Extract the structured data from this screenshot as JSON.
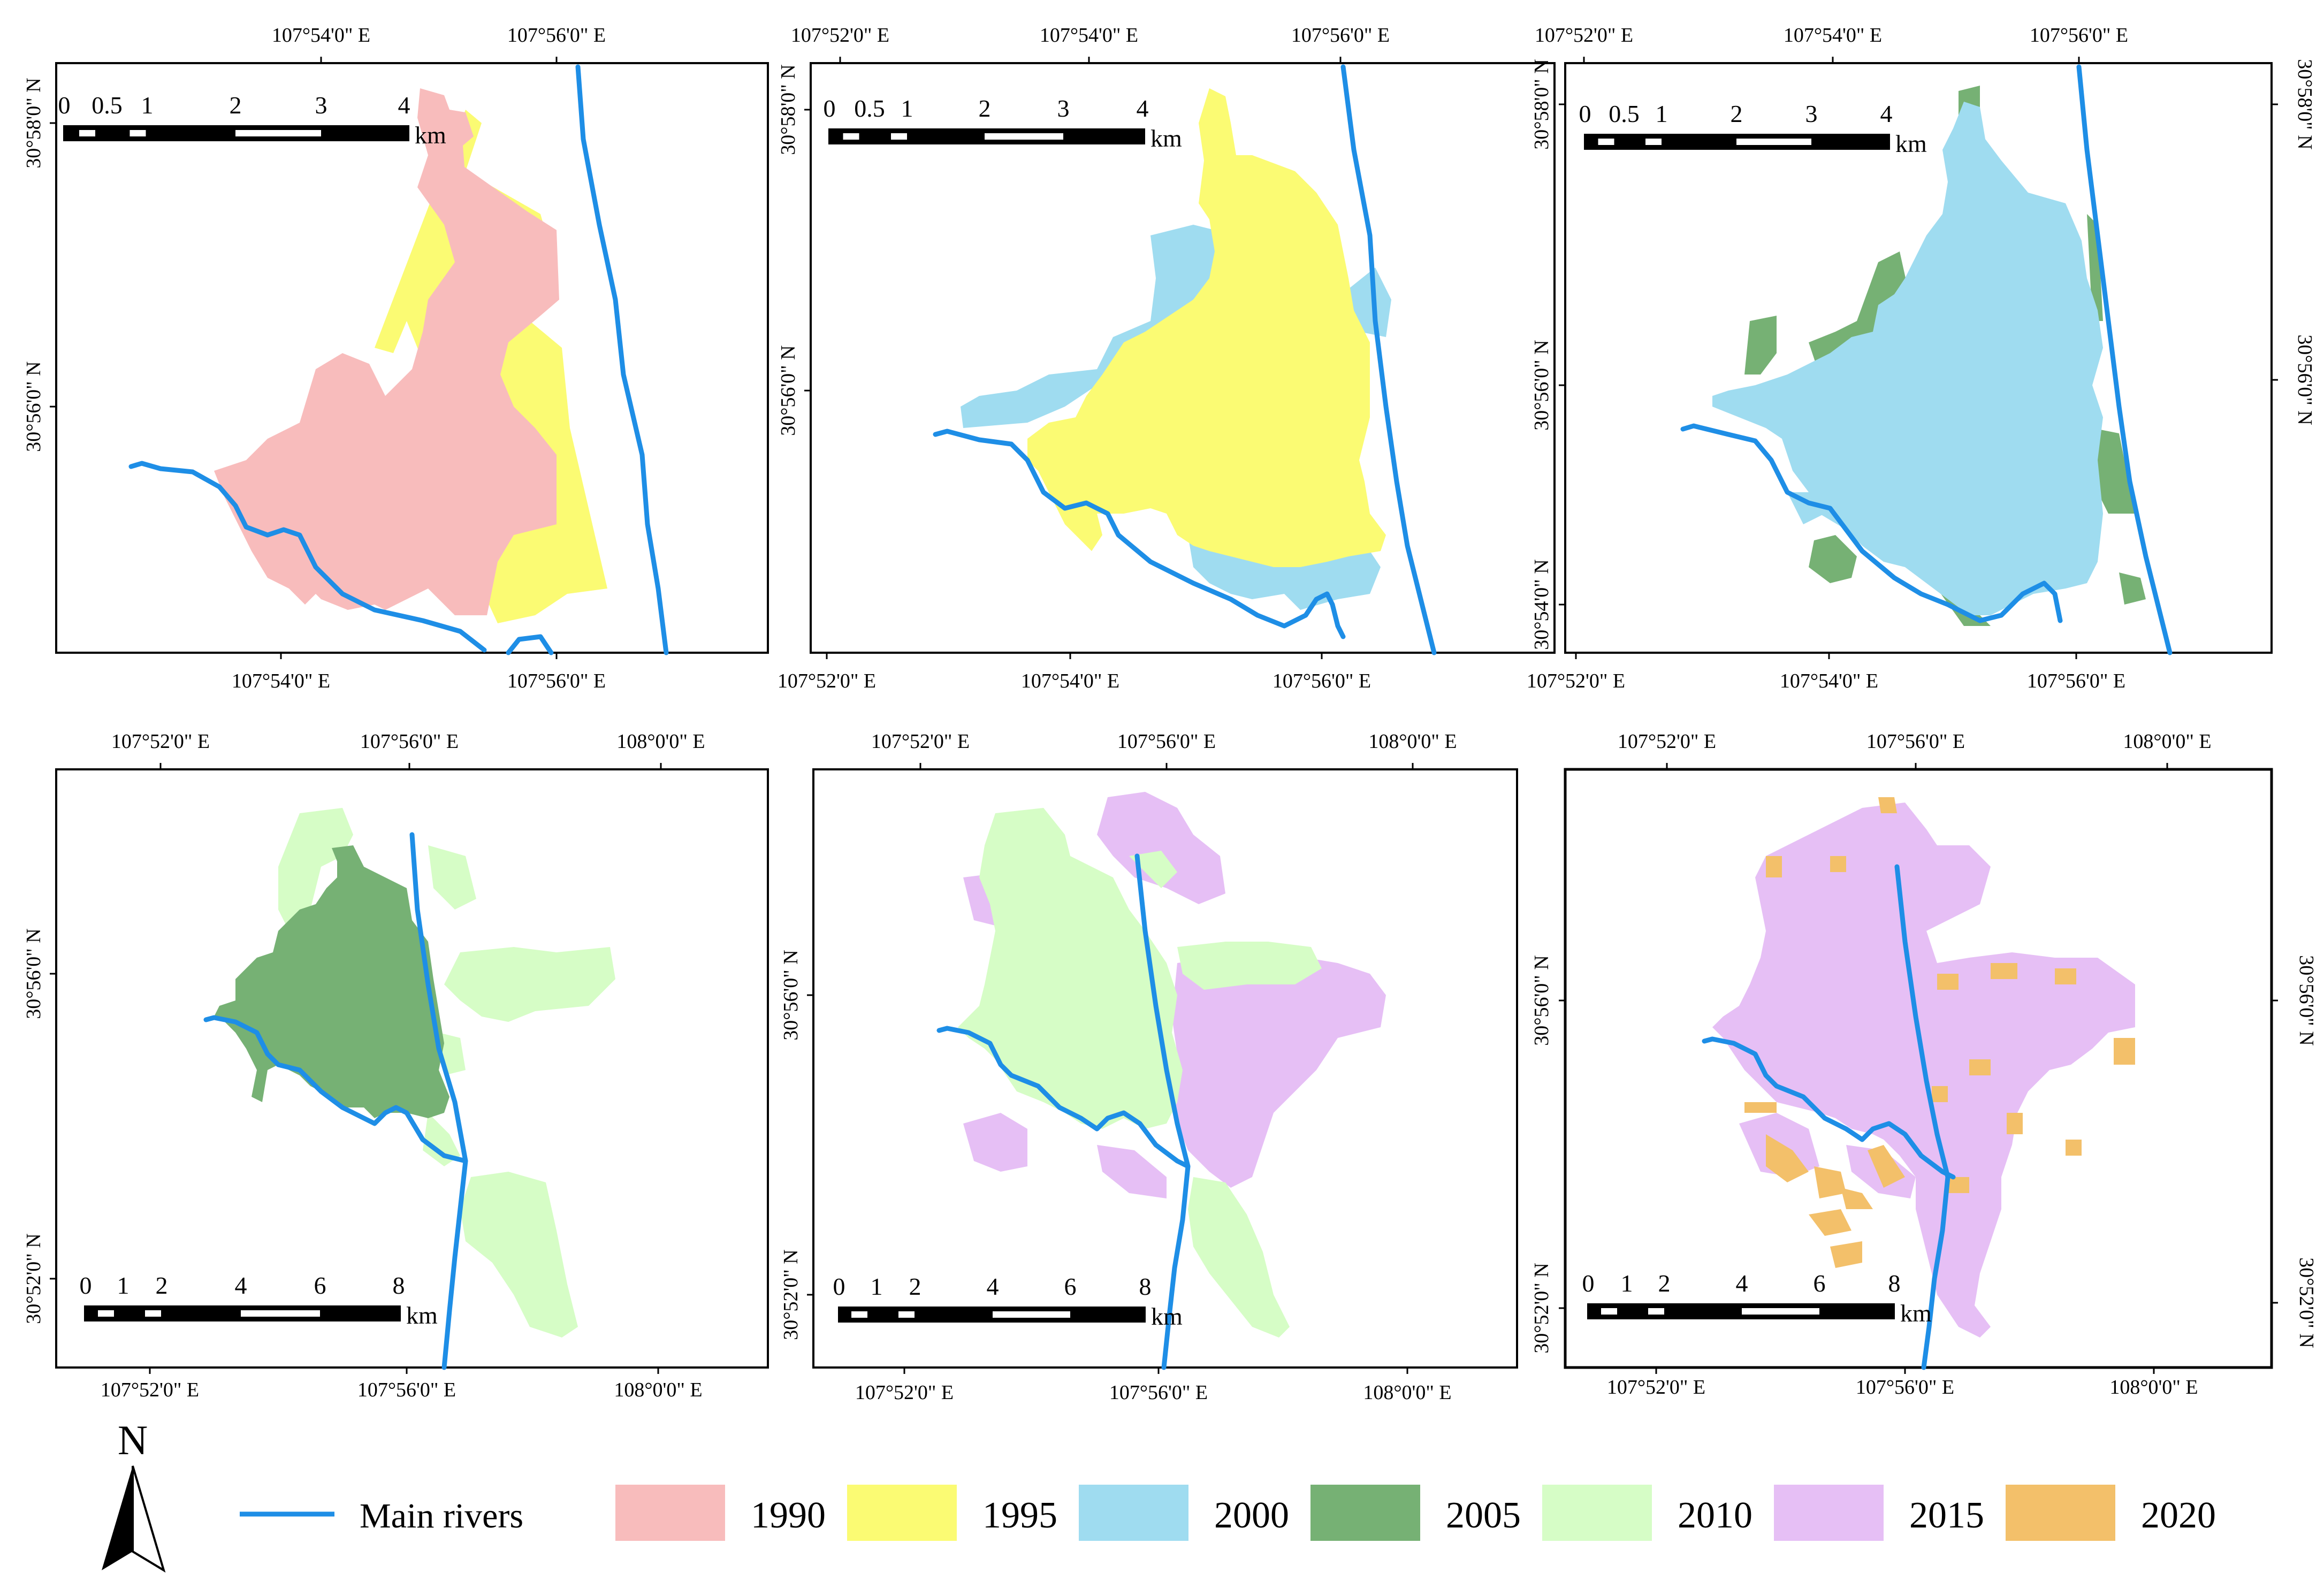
{
  "colors": {
    "1990": "#f8bcbc",
    "1995": "#fbfb73",
    "2000": "#9fdcf0",
    "2005": "#76b174",
    "2010": "#d6fdc6",
    "2015": "#e6bff5",
    "2020": "#f3c06a",
    "river": "#1e8ee6"
  },
  "panels": [
    {
      "top_lon": [
        "107°54'0\" E",
        "107°56'0\" E"
      ],
      "bottom_lon": [
        "107°54'0\" E",
        "107°56'0\" E"
      ],
      "left_lat": [
        "30°58'0\" N",
        "30°56'0\" N"
      ],
      "right_lat": [],
      "scale": {
        "ticks": [
          "0",
          "0.5",
          "1",
          "2",
          "3",
          "4"
        ],
        "unit": "km"
      }
    },
    {
      "top_lon": [
        "107°52'0\" E",
        "107°54'0\" E",
        "107°56'0\" E"
      ],
      "bottom_lon": [
        "107°52'0\" E",
        "107°54'0\" E",
        "107°56'0\" E"
      ],
      "left_lat": [
        "30°58'0\" N",
        "30°56'0\" N"
      ],
      "right_lat": [],
      "scale": {
        "ticks": [
          "0",
          "0.5",
          "1",
          "2",
          "3",
          "4"
        ],
        "unit": "km"
      }
    },
    {
      "top_lon": [
        "107°52'0\" E",
        "107°54'0\" E",
        "107°56'0\" E"
      ],
      "bottom_lon": [
        "107°52'0\" E",
        "107°54'0\" E",
        "107°56'0\" E"
      ],
      "left_lat": [
        "30°58'0\" N",
        "30°56'0\" N",
        "30°54'0\" N"
      ],
      "right_lat": [
        "30°58'0\" N",
        "30°56'0\" N"
      ],
      "scale": {
        "ticks": [
          "0",
          "0.5",
          "1",
          "2",
          "3",
          "4"
        ],
        "unit": "km"
      }
    },
    {
      "top_lon": [
        "107°52'0\" E",
        "107°56'0\" E",
        "108°0'0\" E"
      ],
      "bottom_lon": [
        "107°52'0\" E",
        "107°56'0\" E",
        "108°0'0\" E"
      ],
      "left_lat": [
        "30°56'0\" N",
        "30°52'0\" N"
      ],
      "right_lat": [],
      "scale": {
        "ticks": [
          "0",
          "1",
          "2",
          "4",
          "6",
          "8"
        ],
        "unit": "km"
      }
    },
    {
      "top_lon": [
        "107°52'0\" E",
        "107°56'0\" E",
        "108°0'0\" E"
      ],
      "bottom_lon": [
        "107°52'0\" E",
        "107°56'0\" E",
        "108°0'0\" E"
      ],
      "left_lat": [
        "30°56'0\" N",
        "30°52'0\" N"
      ],
      "right_lat": [],
      "scale": {
        "ticks": [
          "0",
          "1",
          "2",
          "4",
          "6",
          "8"
        ],
        "unit": "km"
      }
    },
    {
      "top_lon": [
        "107°52'0\" E",
        "107°56'0\" E",
        "108°0'0\" E"
      ],
      "bottom_lon": [
        "107°52'0\" E",
        "107°56'0\" E",
        "108°0'0\" E"
      ],
      "left_lat": [
        "30°56'0\" N",
        "30°52'0\" N"
      ],
      "right_lat": [
        "30°56'0\" N",
        "30°52'0\" N"
      ],
      "scale": {
        "ticks": [
          "0",
          "1",
          "2",
          "4",
          "6",
          "8"
        ],
        "unit": "km"
      }
    }
  ],
  "legend": {
    "north": "N",
    "rivers_label": "Main rivers",
    "years": [
      "1990",
      "1995",
      "2000",
      "2005",
      "2010",
      "2015",
      "2020"
    ]
  }
}
